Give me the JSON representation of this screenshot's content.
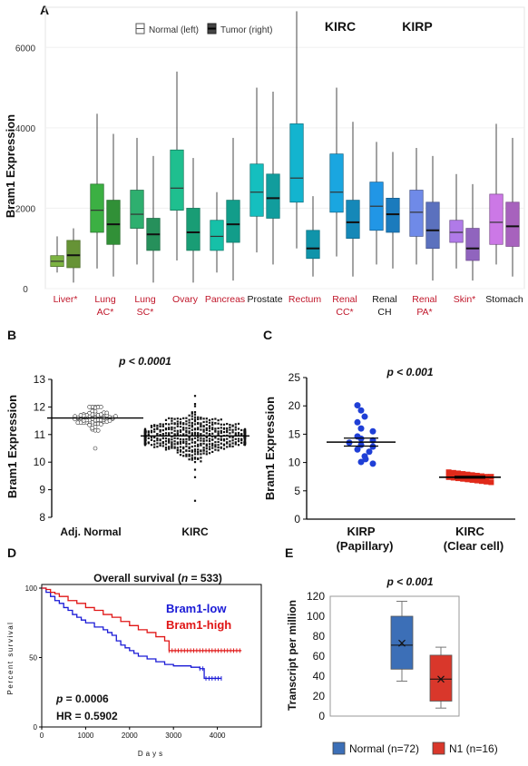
{
  "panels": {
    "A": {
      "label": "A"
    },
    "B": {
      "label": "B"
    },
    "C": {
      "label": "C"
    },
    "D": {
      "label": "D"
    },
    "E": {
      "label": "E"
    }
  },
  "chart_data": [
    {
      "id": "A",
      "type": "boxplot",
      "ylabel": "Bram1 Expression",
      "ylim": [
        0,
        7000
      ],
      "yticks": [
        0,
        2000,
        4000,
        6000
      ],
      "legend": {
        "normal": "Normal (left)",
        "tumor": "Tumor (right)",
        "placement": "top-center"
      },
      "annotations": [
        "KIRC",
        "KIRP"
      ],
      "categories": [
        {
          "name": "Liver*",
          "line2": "",
          "significant": true,
          "color": "#7cb342",
          "normal": {
            "min": 400,
            "q1": 550,
            "median": 680,
            "q3": 820,
            "max": 1300
          },
          "tumor": {
            "min": 150,
            "q1": 520,
            "median": 830,
            "q3": 1200,
            "max": 1500
          }
        },
        {
          "name": "Lung",
          "line2": "AC*",
          "significant": true,
          "color": "#3cb043",
          "normal": {
            "min": 500,
            "q1": 1400,
            "median": 1950,
            "q3": 2600,
            "max": 4350
          },
          "tumor": {
            "min": 300,
            "q1": 1100,
            "median": 1600,
            "q3": 2200,
            "max": 3850
          }
        },
        {
          "name": "Lung",
          "line2": "SC*",
          "significant": true,
          "color": "#2eaf6f",
          "normal": {
            "min": 600,
            "q1": 1500,
            "median": 1850,
            "q3": 2450,
            "max": 3750
          },
          "tumor": {
            "min": 150,
            "q1": 950,
            "median": 1350,
            "q3": 1750,
            "max": 3300
          }
        },
        {
          "name": "Ovary",
          "line2": "",
          "significant": true,
          "color": "#1fbf8f",
          "normal": {
            "min": 700,
            "q1": 1950,
            "median": 2500,
            "q3": 3450,
            "max": 5400
          },
          "tumor": {
            "min": 150,
            "q1": 950,
            "median": 1400,
            "q3": 2000,
            "max": 3250
          }
        },
        {
          "name": "Pancreas",
          "line2": "",
          "significant": true,
          "color": "#16c0a8",
          "normal": {
            "min": 400,
            "q1": 950,
            "median": 1300,
            "q3": 1700,
            "max": 2400
          },
          "tumor": {
            "min": 200,
            "q1": 1150,
            "median": 1600,
            "q3": 2200,
            "max": 3750
          }
        },
        {
          "name": "Prostate",
          "line2": "",
          "significant": false,
          "color": "#15bfbf",
          "normal": {
            "min": 900,
            "q1": 1800,
            "median": 2400,
            "q3": 3100,
            "max": 5000
          },
          "tumor": {
            "min": 600,
            "q1": 1750,
            "median": 2250,
            "q3": 2850,
            "max": 4900
          }
        },
        {
          "name": "Rectum",
          "line2": "",
          "significant": true,
          "color": "#13b4cf",
          "normal": {
            "min": 1000,
            "q1": 2150,
            "median": 2750,
            "q3": 4100,
            "max": 6900
          },
          "tumor": {
            "min": 300,
            "q1": 750,
            "median": 1000,
            "q3": 1450,
            "max": 2300
          }
        },
        {
          "name": "Renal",
          "line2": "CC*",
          "significant": true,
          "color": "#1aa6e0",
          "normal": {
            "min": 800,
            "q1": 1900,
            "median": 2400,
            "q3": 3350,
            "max": 5000
          },
          "tumor": {
            "min": 300,
            "q1": 1250,
            "median": 1650,
            "q3": 2200,
            "max": 4150
          }
        },
        {
          "name": "Renal",
          "line2": "CH",
          "significant": false,
          "color": "#2196e6",
          "normal": {
            "min": 600,
            "q1": 1450,
            "median": 2050,
            "q3": 2650,
            "max": 3650
          },
          "tumor": {
            "min": 500,
            "q1": 1400,
            "median": 1850,
            "q3": 2250,
            "max": 3400
          }
        },
        {
          "name": "Renal",
          "line2": "PA*",
          "significant": true,
          "color": "#6f8ae8",
          "normal": {
            "min": 600,
            "q1": 1300,
            "median": 1900,
            "q3": 2450,
            "max": 3500
          },
          "tumor": {
            "min": 200,
            "q1": 1000,
            "median": 1450,
            "q3": 2150,
            "max": 3300
          }
        },
        {
          "name": "Skin*",
          "line2": "",
          "significant": true,
          "color": "#b07ae8",
          "normal": {
            "min": 500,
            "q1": 1150,
            "median": 1400,
            "q3": 1700,
            "max": 2850
          },
          "tumor": {
            "min": 200,
            "q1": 700,
            "median": 1000,
            "q3": 1500,
            "max": 2600
          }
        },
        {
          "name": "Stomach",
          "line2": "",
          "significant": false,
          "color": "#cc78e6",
          "normal": {
            "min": 600,
            "q1": 1100,
            "median": 1650,
            "q3": 2350,
            "max": 4100
          },
          "tumor": {
            "min": 300,
            "q1": 1050,
            "median": 1550,
            "q3": 2150,
            "max": 3750
          }
        }
      ]
    },
    {
      "id": "B",
      "type": "scatter",
      "title": "p < 0.0001",
      "ylabel": "Bram1 Expression",
      "ylim": [
        8,
        13
      ],
      "yticks": [
        8,
        9,
        10,
        11,
        12,
        13
      ],
      "categories": [
        "Adj. Normal",
        "KIRC"
      ],
      "groups": [
        {
          "name": "Adj. Normal",
          "center": 11.6,
          "sd": 0.22,
          "n": 72,
          "min": 10.5,
          "max": 12.0,
          "marker": "open-circle",
          "median": 11.6
        },
        {
          "name": "KIRC",
          "center": 10.95,
          "sd": 0.35,
          "n": 533,
          "min": 8.6,
          "max": 12.4,
          "marker": "filled-square",
          "median": 10.95
        }
      ]
    },
    {
      "id": "C",
      "type": "scatter",
      "title": "p < 0.001",
      "ylabel": "Bram1 Expression",
      "ylim": [
        0,
        25
      ],
      "yticks": [
        0,
        5,
        10,
        15,
        20,
        25
      ],
      "categories": [
        "KIRP",
        "KIRC"
      ],
      "category_sublabels": [
        "(Papillary)",
        "(Clear cell)"
      ],
      "groups": [
        {
          "name": "KIRP",
          "mean": 13.6,
          "sem": 0.7,
          "color": "#1f3fd6",
          "values": [
            20.1,
            19.2,
            18.1,
            17.1,
            16.0,
            15.5,
            14.6,
            14.2,
            13.9,
            13.5,
            13.1,
            12.8,
            12.3,
            11.9,
            11.1,
            10.6,
            10.1,
            9.8
          ]
        },
        {
          "name": "KIRC",
          "mean": 7.4,
          "sem": 0.15,
          "color": "#e02a1a",
          "values": [
            8.3,
            8.2,
            8.1,
            8.0,
            7.9,
            7.8,
            7.7,
            7.6,
            7.5,
            7.5,
            7.4,
            7.3,
            7.2,
            7.1,
            7.0,
            6.9,
            6.8,
            6.7,
            6.6,
            6.5
          ]
        }
      ]
    },
    {
      "id": "D",
      "type": "line",
      "title_prefix": "Overall survival (",
      "title_n": "n",
      "title_suffix": " = 533)",
      "xlabel": "Days",
      "ylabel": "Percent survival",
      "xlim": [
        0,
        5000
      ],
      "ylim": [
        0,
        100
      ],
      "xticks": [
        0,
        1000,
        2000,
        3000,
        4000
      ],
      "yticks": [
        0,
        50,
        100
      ],
      "p_label": "p",
      "p_value": " = 0.0006",
      "hr": "HR = 0.5902",
      "series": [
        {
          "name": "Bram1-low",
          "color": "#1a1ad6",
          "x": [
            0,
            100,
            200,
            300,
            400,
            500,
            600,
            700,
            800,
            900,
            1000,
            1200,
            1400,
            1500,
            1600,
            1700,
            1800,
            1900,
            2000,
            2100,
            2200,
            2400,
            2600,
            2800,
            3000,
            3200,
            3400,
            3500,
            3600,
            3700,
            4100
          ],
          "y": [
            100,
            97,
            94,
            91,
            89,
            86,
            84,
            81,
            79,
            77,
            75,
            72,
            70,
            68,
            66,
            62,
            59,
            57,
            55,
            53,
            51,
            49,
            47,
            45,
            44,
            44,
            43,
            43,
            42,
            35,
            35
          ]
        },
        {
          "name": "Bram1-high",
          "color": "#e01616",
          "x": [
            0,
            100,
            200,
            300,
            400,
            600,
            800,
            1000,
            1200,
            1400,
            1600,
            1800,
            2000,
            2200,
            2400,
            2600,
            2800,
            2900,
            3200,
            3600,
            4000,
            4550
          ],
          "y": [
            100,
            99,
            97,
            96,
            94,
            91,
            89,
            86,
            84,
            81,
            79,
            76,
            73,
            70,
            68,
            65,
            62,
            55,
            55,
            55,
            55,
            55
          ]
        }
      ]
    },
    {
      "id": "E",
      "type": "boxplot",
      "title": "p < 0.001",
      "ylabel": "Transcript per million",
      "ylim": [
        0,
        120
      ],
      "yticks": [
        0,
        20,
        40,
        60,
        80,
        100,
        120
      ],
      "legend_placement": "bottom",
      "series": [
        {
          "name": "Normal (n=72)",
          "color": "#3c6fb7",
          "min": 35,
          "q1": 47,
          "median": 71,
          "q3": 100,
          "max": 115,
          "mean": 73
        },
        {
          "name": "N1 (n=16)",
          "color": "#d9372b",
          "min": 8,
          "q1": 15,
          "median": 37,
          "q3": 61,
          "max": 69,
          "mean": 37
        }
      ]
    }
  ]
}
